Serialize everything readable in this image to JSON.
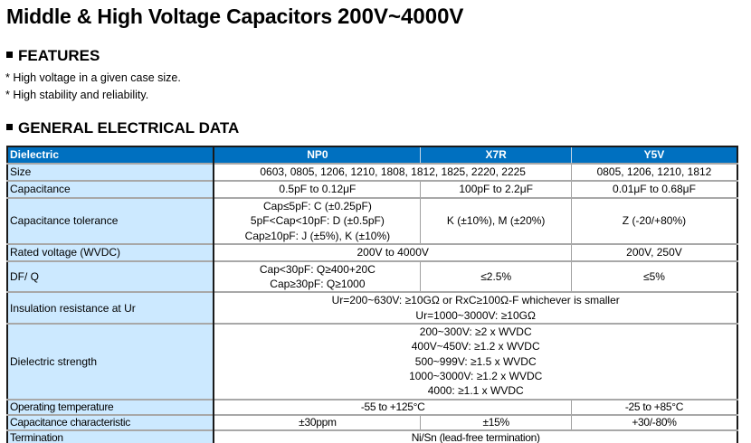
{
  "title": {
    "main": "Middle & High Voltage Capacitors",
    "range": "200V~4000V"
  },
  "features": {
    "heading": "FEATURES",
    "items": [
      "* High voltage in a given case size.",
      "* High stability and reliability."
    ]
  },
  "electrical": {
    "heading": "GENERAL ELECTRICAL DATA",
    "colors": {
      "header_bg": "#0070c0",
      "label_bg": "#cce9ff"
    },
    "columns": [
      "Dielectric",
      "NP0",
      "X7R",
      "Y5V"
    ],
    "rows": {
      "size": {
        "label": "Size",
        "np0_x7r": "0603, 0805, 1206, 1210, 1808, 1812, 1825, 2220, 2225",
        "y5v": "0805, 1206, 1210, 1812"
      },
      "capacitance": {
        "label": "Capacitance",
        "np0": "0.5pF to 0.12μF",
        "x7r": "100pF to 2.2μF",
        "y5v": "0.01μF to 0.68μF"
      },
      "tolerance": {
        "label": "Capacitance tolerance",
        "np0": [
          "Cap≤5pF: C (±0.25pF)",
          "5pF<Cap<10pF: D (±0.5pF)",
          "Cap≥10pF: J (±5%), K (±10%)"
        ],
        "x7r": "K (±10%), M (±20%)",
        "y5v": "Z (-20/+80%)"
      },
      "rated_voltage": {
        "label": "Rated voltage (WVDC)",
        "np0_x7r": "200V to 4000V",
        "y5v": "200V, 250V"
      },
      "df_q": {
        "label": "DF/ Q",
        "np0": [
          "Cap<30pF: Q≥400+20C",
          "Cap≥30pF: Q≥1000"
        ],
        "x7r": "≤2.5%",
        "y5v": "≤5%"
      },
      "insulation": {
        "label": "Insulation resistance at Ur",
        "all": [
          "Ur=200~630V: ≥10GΩ or RxC≥100Ω-F whichever is smaller",
          "Ur=1000~3000V: ≥10GΩ"
        ]
      },
      "dielectric_strength": {
        "label": "Dielectric strength",
        "all": [
          "200~300V: ≥2 x WVDC",
          "400V~450V: ≥1.2 x WVDC",
          "500~999V: ≥1.5 x WVDC",
          "1000~3000V: ≥1.2 x WVDC",
          "4000: ≥1.1 x WVDC"
        ]
      },
      "operating_temp": {
        "label": "Operating temperature",
        "np0_x7r": "-55 to +125°C",
        "y5v": "-25 to +85°C"
      },
      "cap_characteristic": {
        "label": "Capacitance characteristic",
        "np0": "±30ppm",
        "x7r": "±15%",
        "y5v": "+30/-80%"
      },
      "termination": {
        "label": "Termination",
        "all": "Ni/Sn (lead-free termination)"
      }
    }
  }
}
